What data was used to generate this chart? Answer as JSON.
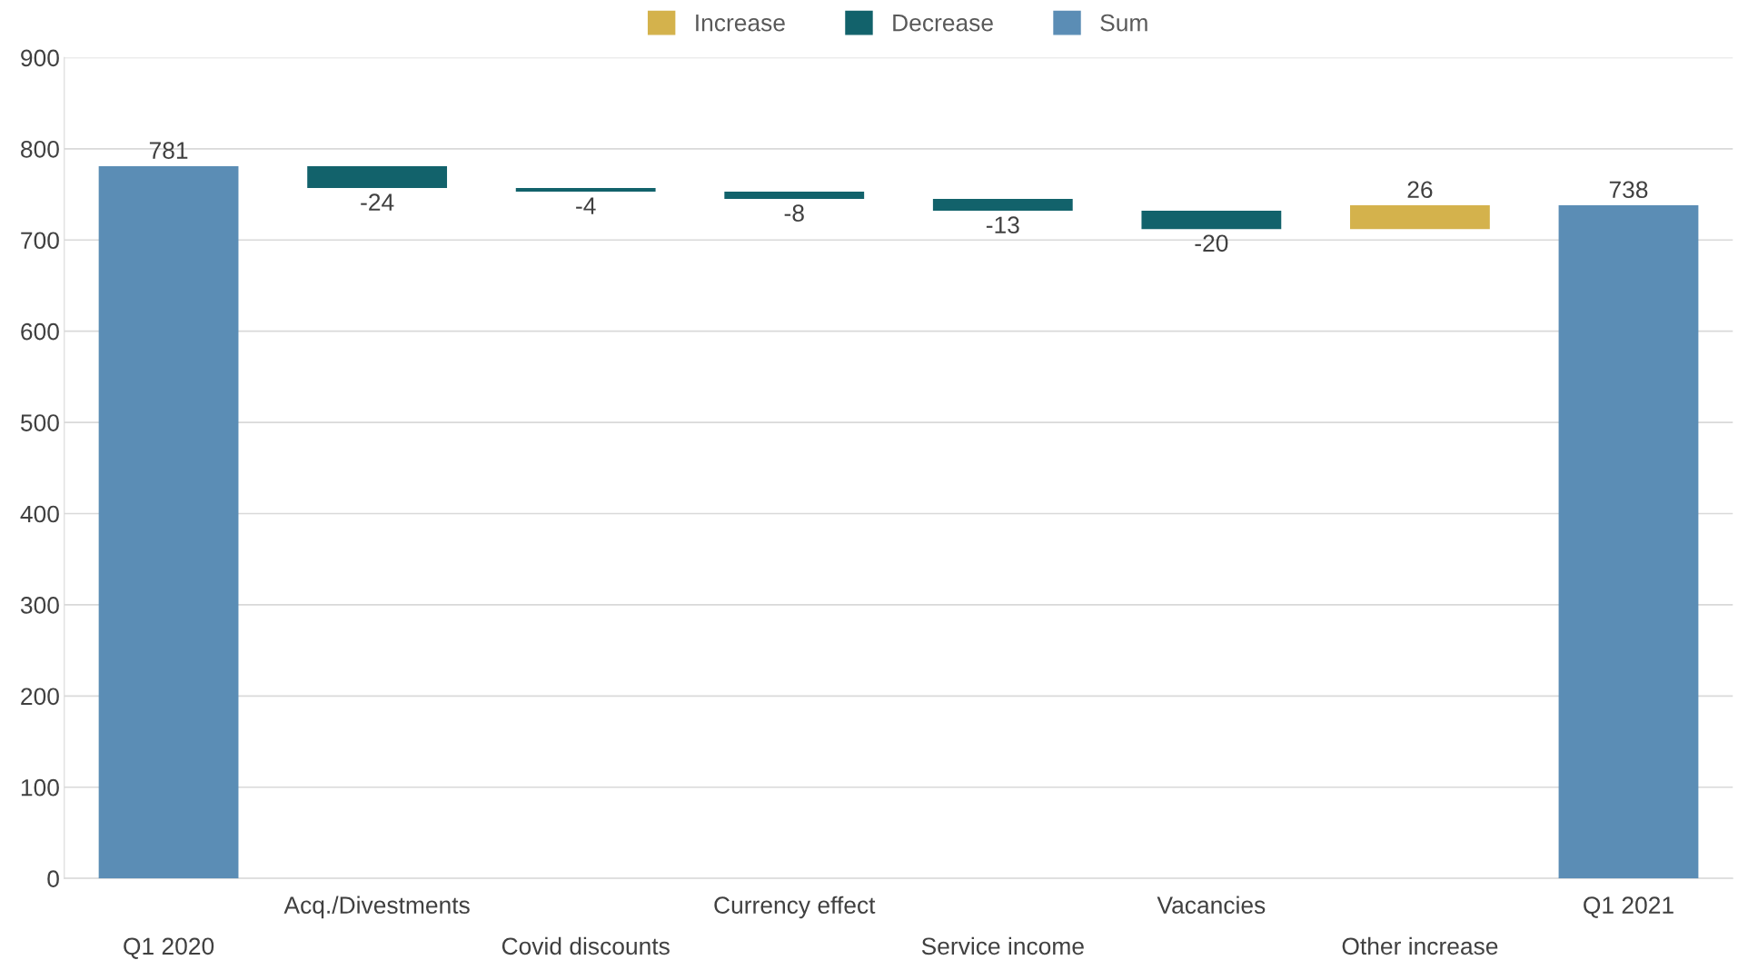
{
  "chart_data": {
    "type": "bar",
    "categories": [
      "Q1 2020",
      "Acq./Divestments",
      "Covid discounts",
      "Currency effect",
      "Service income",
      "Vacancies",
      "Other increase",
      "Q1 2021"
    ],
    "series": [
      {
        "name": "Increase",
        "color": "#d4b24c",
        "values": [
          null,
          null,
          null,
          null,
          null,
          null,
          26,
          null
        ],
        "base": [
          null,
          null,
          null,
          null,
          null,
          null,
          712,
          null
        ],
        "value_labels": [
          null,
          null,
          null,
          null,
          null,
          null,
          "26",
          null
        ]
      },
      {
        "name": "Decrease",
        "color": "#12626b",
        "values": [
          null,
          -24,
          -4,
          -8,
          -13,
          -20,
          null,
          null
        ],
        "base": [
          null,
          781,
          757,
          753,
          745,
          732,
          null,
          null
        ],
        "value_labels": [
          null,
          "-24",
          "-4",
          "-8",
          "-13",
          "-20",
          null,
          null
        ]
      },
      {
        "name": "Sum",
        "color": "#5b8db5",
        "values": [
          781,
          null,
          null,
          null,
          null,
          null,
          null,
          738
        ],
        "base": [
          0,
          null,
          null,
          null,
          null,
          null,
          null,
          0
        ],
        "value_labels": [
          "781",
          null,
          null,
          null,
          null,
          null,
          null,
          "738"
        ]
      }
    ],
    "ylim": [
      0,
      900
    ],
    "yticks": [
      0,
      100,
      200,
      300,
      400,
      500,
      600,
      700,
      800,
      900
    ],
    "grid": "y",
    "legend": "top"
  }
}
